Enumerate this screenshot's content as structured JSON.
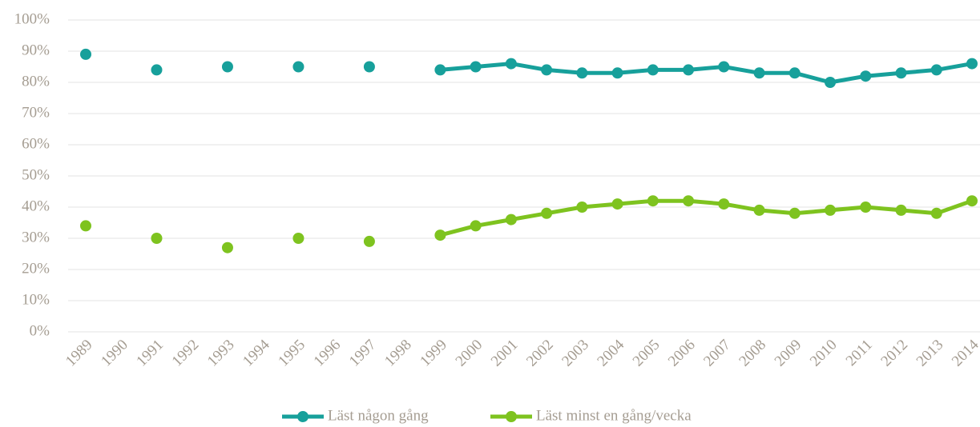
{
  "chart_data": {
    "type": "line",
    "categories": [
      "1989",
      "1990",
      "1991",
      "1992",
      "1993",
      "1994",
      "1995",
      "1996",
      "1997",
      "1998",
      "1999",
      "2000",
      "2001",
      "2002",
      "2003",
      "2004",
      "2005",
      "2006",
      "2007",
      "2008",
      "2009",
      "2010",
      "2011",
      "2012",
      "2013",
      "2014"
    ],
    "series": [
      {
        "name": "Läst någon gång",
        "color": "#17a09b",
        "values": [
          89,
          null,
          84,
          null,
          85,
          null,
          85,
          null,
          85,
          null,
          84,
          85,
          86,
          84,
          83,
          83,
          84,
          84,
          85,
          83,
          83,
          80,
          82,
          83,
          84,
          86
        ]
      },
      {
        "name": "Läst minst en gång/vecka",
        "color": "#7ec31f",
        "values": [
          34,
          null,
          30,
          null,
          27,
          null,
          30,
          null,
          29,
          null,
          31,
          34,
          36,
          38,
          40,
          41,
          42,
          42,
          41,
          39,
          38,
          39,
          40,
          39,
          38,
          42
        ]
      }
    ],
    "ylim": [
      0,
      100
    ],
    "yticks": [
      {
        "value": 0,
        "label": "0%"
      },
      {
        "value": 10,
        "label": "10%"
      },
      {
        "value": 20,
        "label": "20%"
      },
      {
        "value": 30,
        "label": "30%"
      },
      {
        "value": 40,
        "label": "40%"
      },
      {
        "value": 50,
        "label": "50%"
      },
      {
        "value": 60,
        "label": "60%"
      },
      {
        "value": 70,
        "label": "70%"
      },
      {
        "value": 80,
        "label": "80%"
      },
      {
        "value": 90,
        "label": "90%"
      },
      {
        "value": 100,
        "label": "100%"
      }
    ],
    "grid": true,
    "legend": "bottom"
  }
}
